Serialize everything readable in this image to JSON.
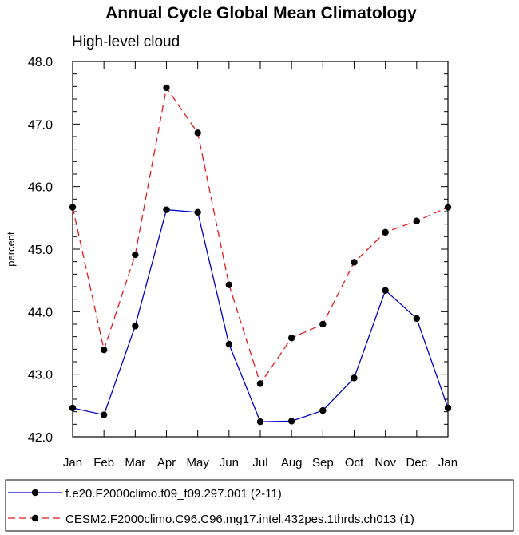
{
  "chart_data": {
    "type": "line",
    "title": "Annual Cycle Global Mean Climatology",
    "subtitle": "High-level cloud",
    "xlabel": "",
    "ylabel": "percent",
    "categories": [
      "Jan",
      "Feb",
      "Mar",
      "Apr",
      "May",
      "Jun",
      "Jul",
      "Aug",
      "Sep",
      "Oct",
      "Nov",
      "Dec",
      "Jan"
    ],
    "ylim": [
      42.0,
      48.0
    ],
    "yticks": [
      "42.0",
      "43.0",
      "44.0",
      "45.0",
      "46.0",
      "47.0",
      "48.0"
    ],
    "grid": false,
    "legend_position": "bottom",
    "series": [
      {
        "name": "f.e20.F2000climo.f09_f09.297.001 (2-11)",
        "color": "#0000cc",
        "line_style": "solid",
        "values": [
          42.46,
          42.35,
          43.77,
          45.63,
          45.59,
          43.48,
          42.24,
          42.25,
          42.42,
          42.94,
          44.34,
          43.89,
          42.46
        ]
      },
      {
        "name": "CESM2.F2000climo.C96.C96.mg17.intel.432pes.1thrds.ch013 (1)",
        "color": "#e8191c",
        "line_style": "dashed",
        "values": [
          45.67,
          43.39,
          44.91,
          47.58,
          46.86,
          44.43,
          42.85,
          43.58,
          43.8,
          44.79,
          45.27,
          45.45,
          45.67
        ]
      }
    ]
  }
}
